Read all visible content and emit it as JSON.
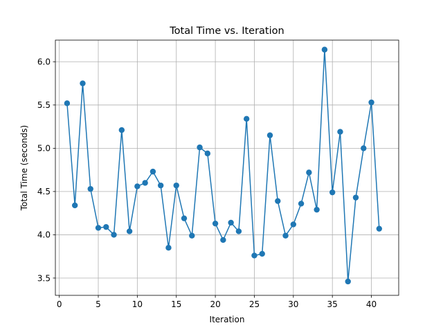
{
  "chart_data": {
    "type": "line",
    "title": "Total Time vs. Iteration",
    "xlabel": "Iteration",
    "ylabel": "Total Time (seconds)",
    "xlim": [
      -0.5,
      43.5
    ],
    "ylim": [
      3.3,
      6.25
    ],
    "xticks": [
      0,
      5,
      10,
      15,
      20,
      25,
      30,
      35,
      40
    ],
    "yticks": [
      3.5,
      4.0,
      4.5,
      5.0,
      5.5,
      6.0
    ],
    "xtick_labels": [
      "0",
      "5",
      "10",
      "15",
      "20",
      "25",
      "30",
      "35",
      "40"
    ],
    "ytick_labels": [
      "3.5",
      "4.0",
      "4.5",
      "5.0",
      "5.5",
      "6.0"
    ],
    "grid": true,
    "color": "#1f77b4",
    "marker": "circle",
    "x": [
      1,
      2,
      3,
      4,
      5,
      6,
      7,
      8,
      9,
      10,
      11,
      12,
      13,
      14,
      15,
      16,
      17,
      18,
      19,
      20,
      21,
      22,
      23,
      24,
      25,
      26,
      27,
      28,
      29,
      30,
      31,
      32,
      33,
      34,
      35,
      36,
      37,
      38,
      39,
      40,
      41
    ],
    "y": [
      5.52,
      4.34,
      5.75,
      4.53,
      4.08,
      4.09,
      4.0,
      5.21,
      4.04,
      4.56,
      4.6,
      4.73,
      4.57,
      3.85,
      4.57,
      4.19,
      3.99,
      5.01,
      4.94,
      4.13,
      3.94,
      4.14,
      4.04,
      5.34,
      3.76,
      3.78,
      5.15,
      4.39,
      3.99,
      4.12,
      4.36,
      4.72,
      4.29,
      6.14,
      4.49,
      5.19,
      3.46,
      4.43,
      5.0,
      5.53,
      4.07
    ]
  }
}
